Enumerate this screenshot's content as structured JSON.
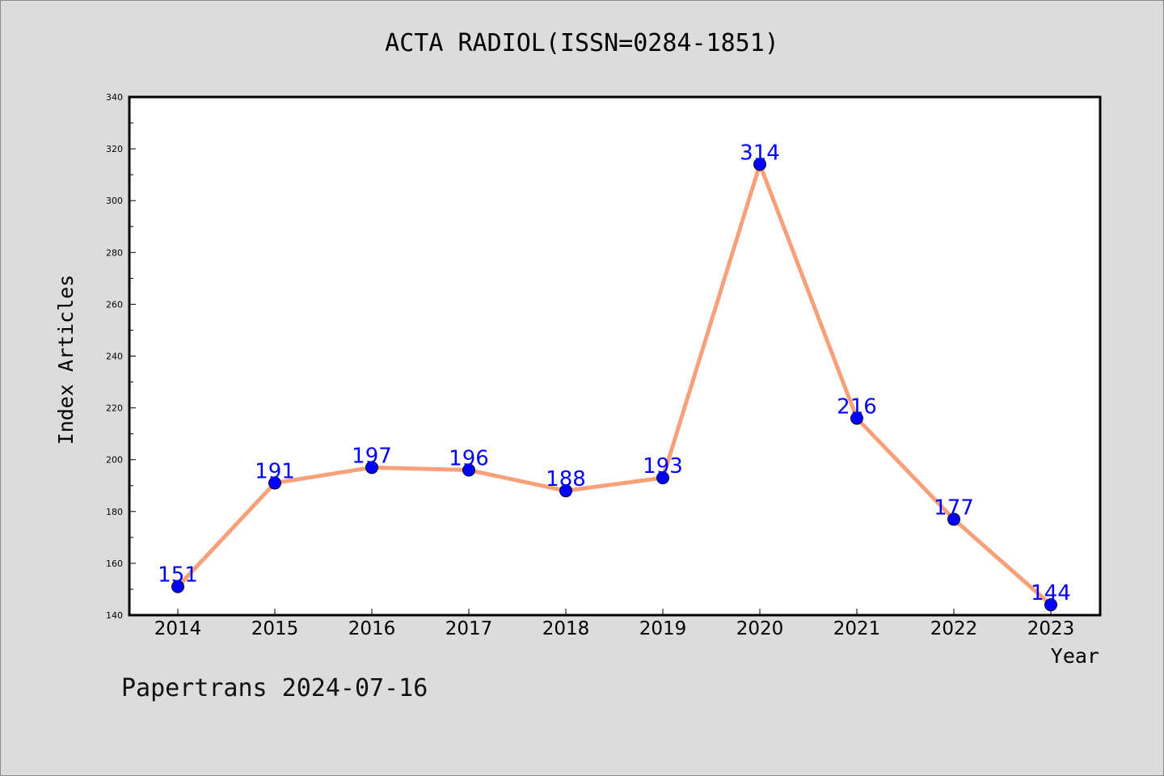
{
  "footer": "Papertrans 2024-07-16",
  "chart_data": {
    "type": "line",
    "title": "ACTA RADIOL(ISSN=0284-1851)",
    "xlabel": "Year",
    "ylabel": "Index Articles",
    "categories": [
      "2014",
      "2015",
      "2016",
      "2017",
      "2018",
      "2019",
      "2020",
      "2021",
      "2022",
      "2023"
    ],
    "values": [
      151,
      191,
      197,
      196,
      188,
      193,
      314,
      216,
      177,
      144
    ],
    "ylim": [
      140,
      340
    ],
    "yticks": [
      140,
      160,
      180,
      200,
      220,
      240,
      260,
      280,
      300,
      320,
      340
    ],
    "grid": false,
    "line_color": "#f7a07a",
    "marker_color": "#0000ff",
    "label_color": "#0000ff"
  }
}
